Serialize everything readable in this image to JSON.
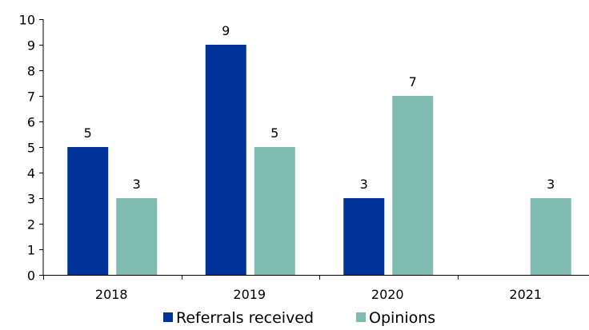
{
  "chart_data": {
    "type": "bar",
    "title": "",
    "xlabel": "",
    "ylabel": "",
    "categories": [
      "2018",
      "2019",
      "2020",
      "2021"
    ],
    "series": [
      {
        "name": "Referrals received",
        "values": [
          5,
          9,
          3,
          null
        ],
        "color": "#003399"
      },
      {
        "name": "Opinions",
        "values": [
          3,
          5,
          7,
          3
        ],
        "color": "#7FBBB0"
      }
    ],
    "ylim": [
      0,
      10
    ],
    "yticks": [
      0,
      1,
      2,
      3,
      4,
      5,
      6,
      7,
      8,
      9,
      10
    ],
    "grid": false,
    "legend_position": "bottom",
    "data_labels": true
  }
}
